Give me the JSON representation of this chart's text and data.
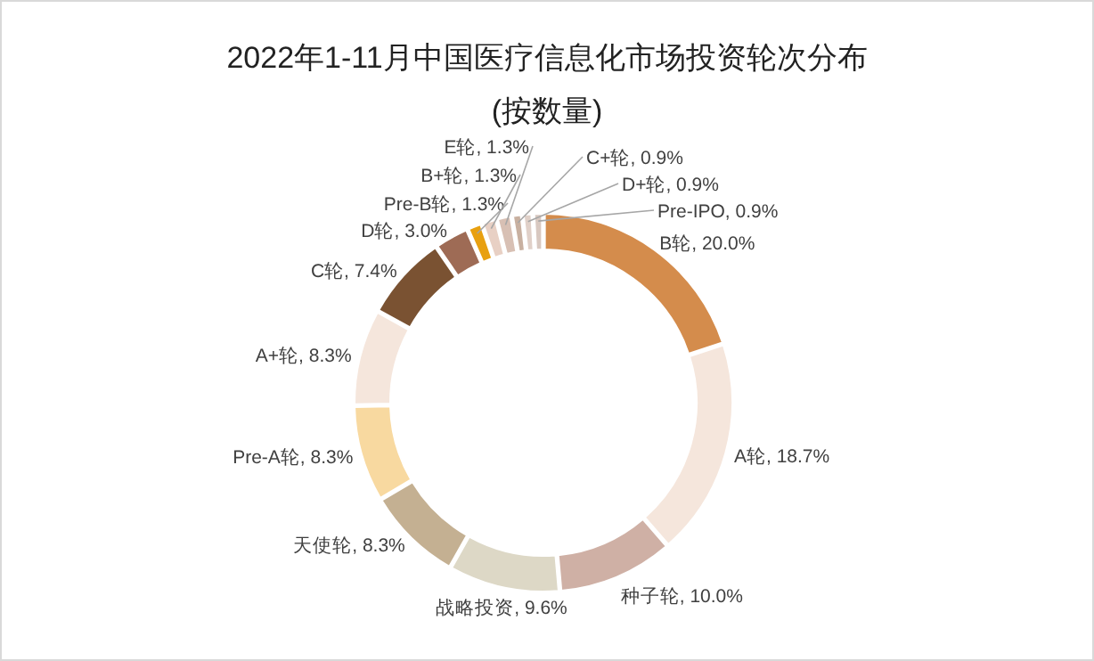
{
  "chart_data": {
    "type": "donut",
    "title": "2022年1-11月中国医疗信息化市场投资轮次分布",
    "subtitle": "(按数量)",
    "categories": [
      "B轮",
      "A轮",
      "种子轮",
      "战略投资",
      "天使轮",
      "Pre-A轮",
      "A+轮",
      "C轮",
      "D轮",
      "Pre-B轮",
      "B+轮",
      "E轮",
      "C+轮",
      "D+轮",
      "Pre-IPO"
    ],
    "values": [
      20.0,
      18.7,
      10.0,
      9.6,
      8.3,
      8.3,
      8.3,
      7.4,
      3.0,
      1.3,
      1.3,
      1.3,
      0.9,
      0.9,
      0.9
    ],
    "value_labels": [
      "20.0%",
      "18.7%",
      "10.0%",
      "9.6%",
      "8.3%",
      "8.3%",
      "8.3%",
      "7.4%",
      "3.0%",
      "1.3%",
      "1.3%",
      "1.3%",
      "0.9%",
      "0.9%",
      "0.9%"
    ],
    "colors": [
      "#d48c4c",
      "#f5e6dc",
      "#cfb0a5",
      "#ddd8c6",
      "#c4b092",
      "#f8d9a0",
      "#f5e6dc",
      "#7a5232",
      "#9e6b55",
      "#e8a010",
      "#e8d0c4",
      "#d8c0b4",
      "#c8b0a0",
      "#e0d0c8",
      "#d8c8c0"
    ]
  }
}
